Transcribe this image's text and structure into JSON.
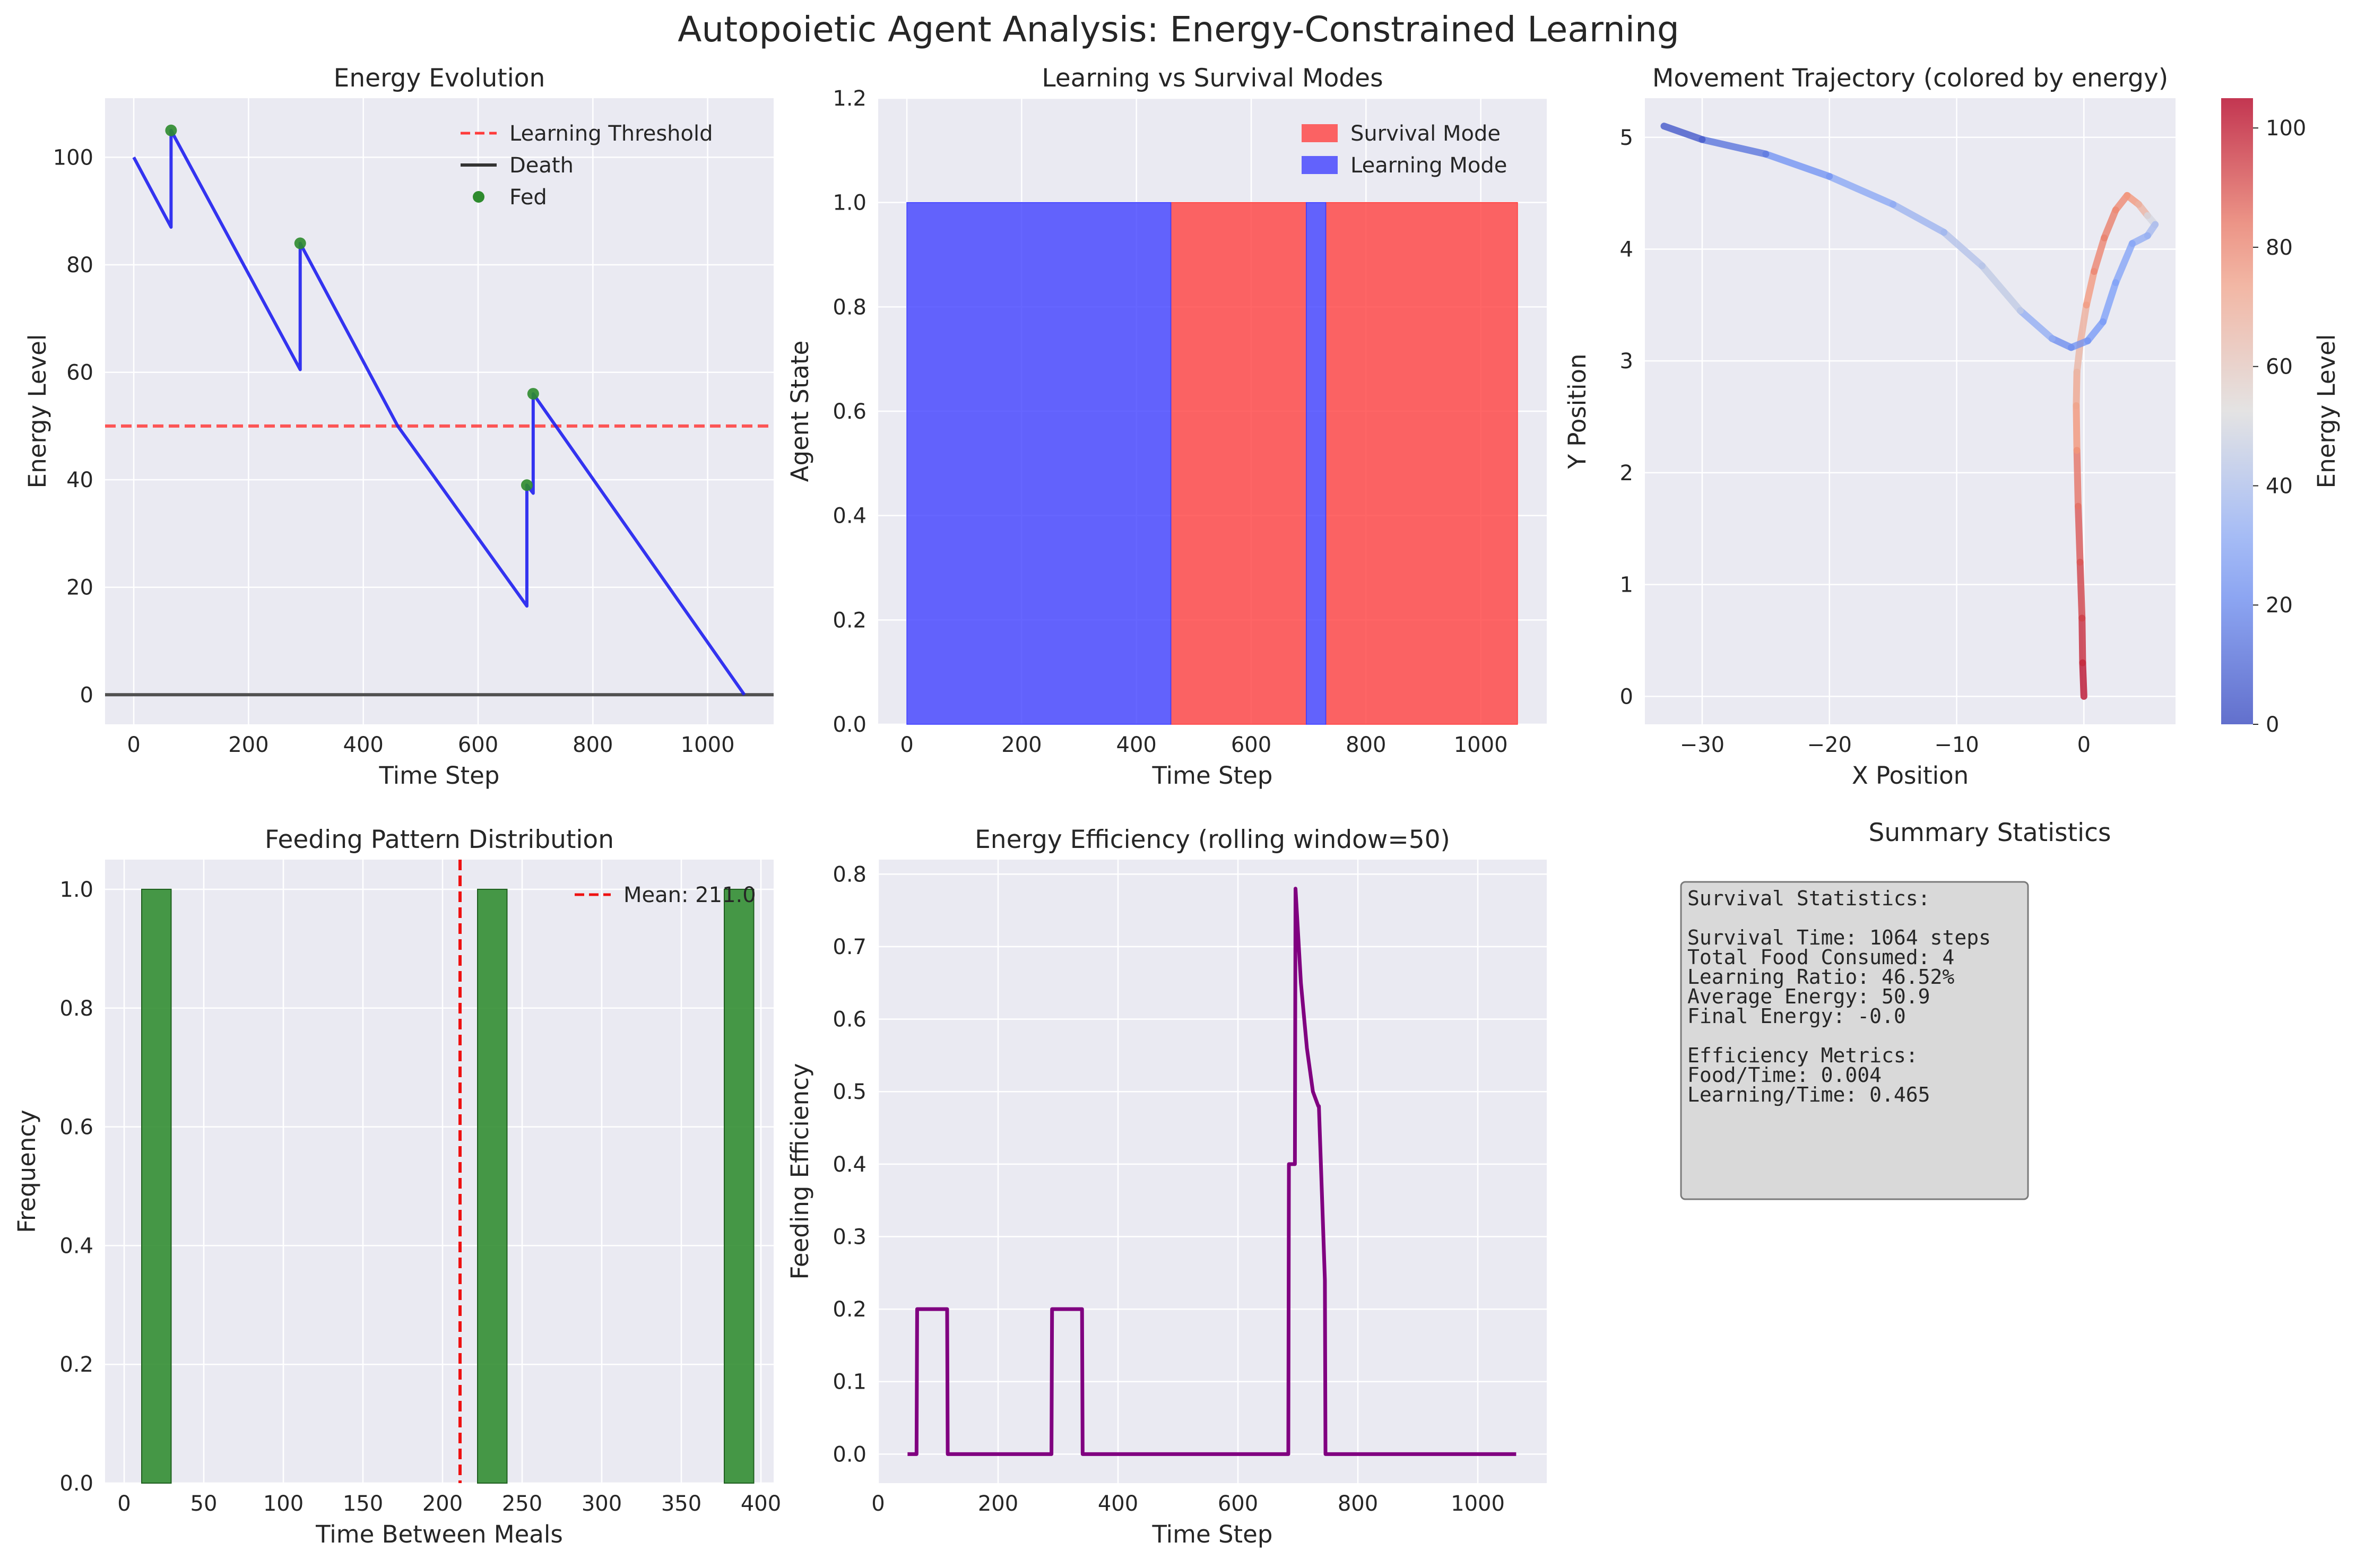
{
  "figure": {
    "suptitle": "Autopoietic Agent Analysis: Energy-Constrained Learning"
  },
  "colors": {
    "axes_bg": "#EAEAF2",
    "grid": "#ffffff",
    "blue": "#1f1fef",
    "red": "#ff3b3b",
    "green": "#2e8b2e",
    "purple": "#800080"
  },
  "chart_data": [
    {
      "id": "energy",
      "type": "line",
      "title": "Energy Evolution",
      "xlabel": "Time Step",
      "ylabel": "Energy Level",
      "xlim": [
        -50,
        1115
      ],
      "ylim": [
        -5.5,
        111
      ],
      "xticks": [
        0,
        200,
        400,
        600,
        800,
        1000
      ],
      "yticks": [
        0,
        20,
        40,
        60,
        80,
        100
      ],
      "legend": "top-right",
      "series": [
        {
          "name": "Energy",
          "color": "#1f1fef",
          "x": [
            0,
            65,
            65,
            290,
            290,
            460,
            685,
            685,
            696,
            696,
            1064
          ],
          "y": [
            100,
            87,
            105,
            60.5,
            84,
            50,
            16.5,
            39,
            37.5,
            56,
            0
          ]
        }
      ],
      "hlines": [
        {
          "name": "Learning Threshold",
          "y": 50,
          "color": "#ff3b3b",
          "style": "dashed"
        },
        {
          "name": "Death",
          "y": 0,
          "color": "#333333",
          "style": "solid"
        }
      ],
      "scatter": {
        "name": "Fed",
        "color": "#2e8b2e",
        "x": [
          65,
          290,
          685,
          696
        ],
        "y": [
          105,
          84,
          39,
          56
        ]
      }
    },
    {
      "id": "modes",
      "type": "area",
      "title": "Learning vs Survival Modes",
      "xlabel": "Time Step",
      "ylabel": "Agent State",
      "xlim": [
        -50,
        1115
      ],
      "ylim": [
        0,
        1.2
      ],
      "xticks": [
        0,
        200,
        400,
        600,
        800,
        1000
      ],
      "yticks": [
        0.0,
        0.2,
        0.4,
        0.6,
        0.8,
        1.0,
        1.2
      ],
      "legend": "top-right",
      "series": [
        {
          "name": "Survival Mode",
          "color": "#ff3b3b",
          "segments": [
            [
              460,
              696
            ],
            [
              730,
              1064
            ]
          ]
        },
        {
          "name": "Learning Mode",
          "color": "#3b3bff",
          "segments": [
            [
              0,
              460
            ],
            [
              696,
              730
            ]
          ]
        }
      ]
    },
    {
      "id": "trajectory",
      "type": "line",
      "title": "Movement Trajectory (colored by energy)",
      "xlabel": "X Position",
      "ylabel": "Y Position",
      "xlim": [
        -34.5,
        7.2
      ],
      "ylim": [
        -0.25,
        5.35
      ],
      "xticks": [
        -30,
        -20,
        -10,
        0
      ],
      "yticks": [
        0,
        1,
        2,
        3,
        4,
        5
      ],
      "colorbar": {
        "label": "Energy Level",
        "min": 0,
        "max": 105,
        "ticks": [
          0,
          20,
          40,
          60,
          80,
          100
        ]
      },
      "points": [
        {
          "x": 0,
          "y": 0,
          "e": 105
        },
        {
          "x": -0.1,
          "y": 0.3,
          "e": 100
        },
        {
          "x": -0.15,
          "y": 0.7,
          "e": 96
        },
        {
          "x": -0.3,
          "y": 1.2,
          "e": 92
        },
        {
          "x": -0.45,
          "y": 1.7,
          "e": 88
        },
        {
          "x": -0.55,
          "y": 2.2,
          "e": 82
        },
        {
          "x": -0.6,
          "y": 2.6,
          "e": 76
        },
        {
          "x": -0.55,
          "y": 2.9,
          "e": 70
        },
        {
          "x": -0.3,
          "y": 3.15,
          "e": 65
        },
        {
          "x": 0.2,
          "y": 3.5,
          "e": 75
        },
        {
          "x": 0.8,
          "y": 3.8,
          "e": 80
        },
        {
          "x": 1.6,
          "y": 4.1,
          "e": 84
        },
        {
          "x": 2.5,
          "y": 4.35,
          "e": 82
        },
        {
          "x": 3.4,
          "y": 4.48,
          "e": 80
        },
        {
          "x": 4.3,
          "y": 4.4,
          "e": 76
        },
        {
          "x": 5.0,
          "y": 4.3,
          "e": 60
        },
        {
          "x": 5.6,
          "y": 4.22,
          "e": 40
        },
        {
          "x": 5.0,
          "y": 4.12,
          "e": 35
        },
        {
          "x": 3.8,
          "y": 4.05,
          "e": 30
        },
        {
          "x": 2.5,
          "y": 3.7,
          "e": 28
        },
        {
          "x": 1.5,
          "y": 3.35,
          "e": 26
        },
        {
          "x": 0.3,
          "y": 3.18,
          "e": 24
        },
        {
          "x": -1.0,
          "y": 3.12,
          "e": 22
        },
        {
          "x": -2.5,
          "y": 3.2,
          "e": 20
        },
        {
          "x": -5.0,
          "y": 3.45,
          "e": 45
        },
        {
          "x": -8.0,
          "y": 3.85,
          "e": 45
        },
        {
          "x": -11.0,
          "y": 4.15,
          "e": 38
        },
        {
          "x": -15.0,
          "y": 4.4,
          "e": 33
        },
        {
          "x": -20.0,
          "y": 4.65,
          "e": 28
        },
        {
          "x": -25.0,
          "y": 4.85,
          "e": 18
        },
        {
          "x": -30.0,
          "y": 4.98,
          "e": 8
        },
        {
          "x": -33.0,
          "y": 5.1,
          "e": 0
        }
      ]
    },
    {
      "id": "feeding",
      "type": "bar",
      "title": "Feeding Pattern Distribution",
      "xlabel": "Time Between Meals",
      "ylabel": "Frequency",
      "xlim": [
        -12,
        408
      ],
      "ylim": [
        0,
        1.05
      ],
      "xticks": [
        0,
        50,
        100,
        150,
        200,
        250,
        300,
        350,
        400
      ],
      "yticks": [
        0.0,
        0.2,
        0.4,
        0.6,
        0.8,
        1.0
      ],
      "legend": "top-right",
      "bars": [
        {
          "x0": 11,
          "x1": 29.5,
          "value": 1
        },
        {
          "x0": 222,
          "x1": 240.5,
          "value": 1
        },
        {
          "x0": 377,
          "x1": 395.5,
          "value": 1
        }
      ],
      "mean": {
        "label": "Mean: 211.0",
        "value": 211.0
      }
    },
    {
      "id": "efficiency",
      "type": "line",
      "title": "Energy Efficiency (rolling window=50)",
      "xlabel": "Time Step",
      "ylabel": "Feeding Efficiency",
      "xlim": [
        0,
        1115
      ],
      "ylim": [
        -0.04,
        0.82
      ],
      "xticks": [
        0,
        200,
        400,
        600,
        800,
        1000
      ],
      "yticks": [
        0.0,
        0.1,
        0.2,
        0.3,
        0.4,
        0.5,
        0.6,
        0.7,
        0.8
      ],
      "series": [
        {
          "name": "Efficiency",
          "color": "#800080",
          "x": [
            49,
            64,
            65,
            115,
            116,
            289,
            290,
            340,
            341,
            684,
            685,
            695,
            696,
            705,
            715,
            725,
            734,
            735,
            745,
            746,
            1064
          ],
          "y": [
            0,
            0,
            0.2,
            0.2,
            0,
            0,
            0.2,
            0.2,
            0,
            0,
            0.4,
            0.4,
            0.78,
            0.65,
            0.56,
            0.5,
            0.48,
            0.48,
            0.24,
            0,
            0
          ]
        }
      ]
    }
  ],
  "summary": {
    "title": "Summary Statistics",
    "lines": [
      "Survival Statistics:",
      "",
      "Survival Time: 1064 steps",
      "Total Food Consumed: 4",
      "Learning Ratio: 46.52%",
      "Average Energy: 50.9",
      "Final Energy: -0.0",
      "",
      "Efficiency Metrics:",
      "Food/Time: 0.004",
      "Learning/Time: 0.465"
    ]
  }
}
